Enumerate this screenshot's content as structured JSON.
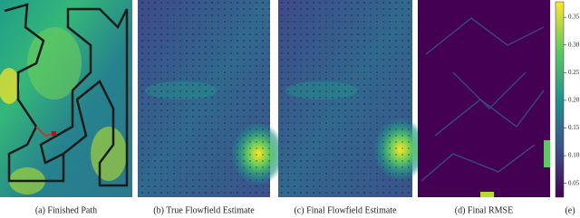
{
  "figure": {
    "captions": [
      "(a) Finished Path",
      "(b) True Flowfield Estimate",
      "(c) Final Flowfield Estimate",
      "(d) Final RMSE",
      "(e)"
    ],
    "colorbar": {
      "lim": [
        0.025,
        0.378
      ],
      "ticks": [
        0.05,
        {
          "value": 0.1,
          "label": "0.10"
        },
        0.15,
        {
          "value": 0.2,
          "label": "0.20"
        },
        0.25,
        {
          "value": 0.3,
          "label": "0.30"
        },
        0.35
      ]
    }
  }
}
